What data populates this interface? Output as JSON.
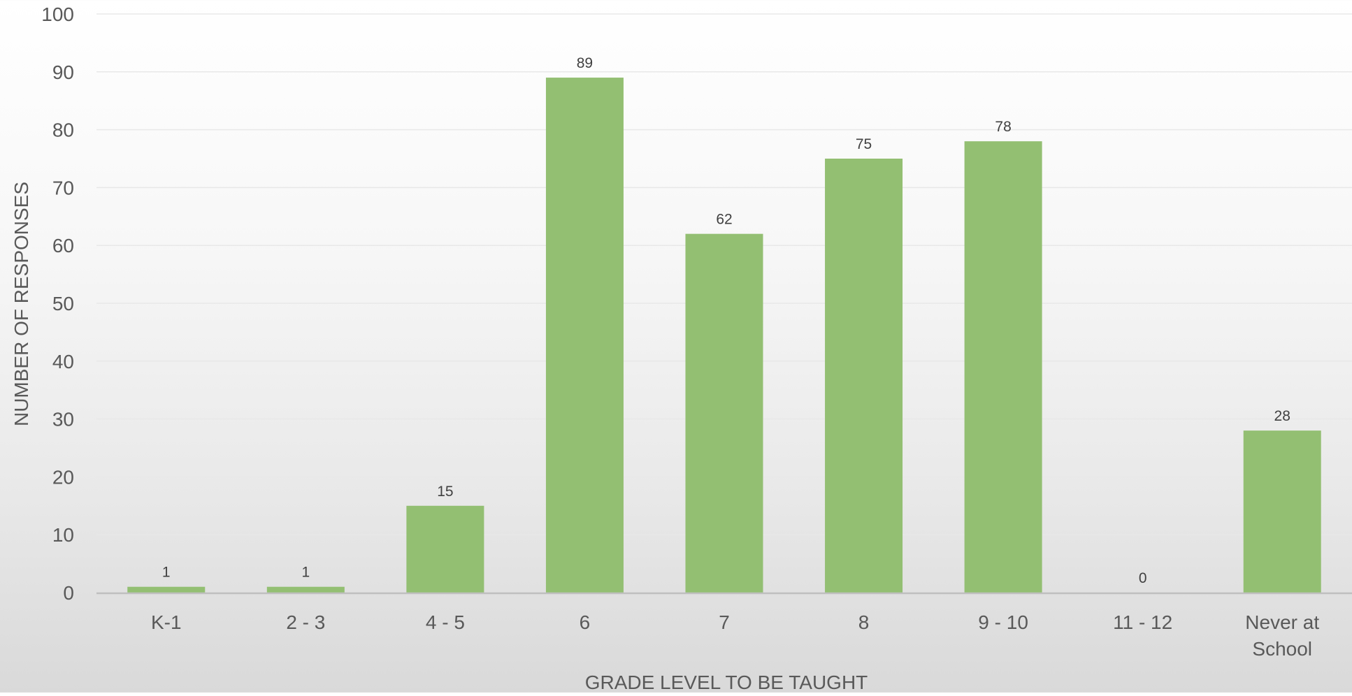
{
  "chart_data": {
    "type": "bar",
    "title": "",
    "xlabel": "GRADE LEVEL TO BE TAUGHT",
    "ylabel": "NUMBER OF RESPONSES",
    "categories": [
      [
        "K-1"
      ],
      [
        "2 - 3"
      ],
      [
        "4 - 5"
      ],
      [
        "6"
      ],
      [
        "7"
      ],
      [
        "8"
      ],
      [
        "9 - 10"
      ],
      [
        "11 - 12"
      ],
      [
        "Never at",
        "School"
      ]
    ],
    "values": [
      1,
      1,
      15,
      89,
      62,
      75,
      78,
      0,
      28
    ],
    "ylim": [
      0,
      100
    ],
    "yticks": [
      0,
      10,
      20,
      30,
      40,
      50,
      60,
      70,
      80,
      90,
      100
    ],
    "grid": true,
    "legend": "none",
    "colors": {
      "bar": "#93bf72",
      "axis_text": "#595959",
      "label_text": "#404040",
      "gridline": "#e8e8e8",
      "baseline": "#bfbfbf"
    }
  }
}
